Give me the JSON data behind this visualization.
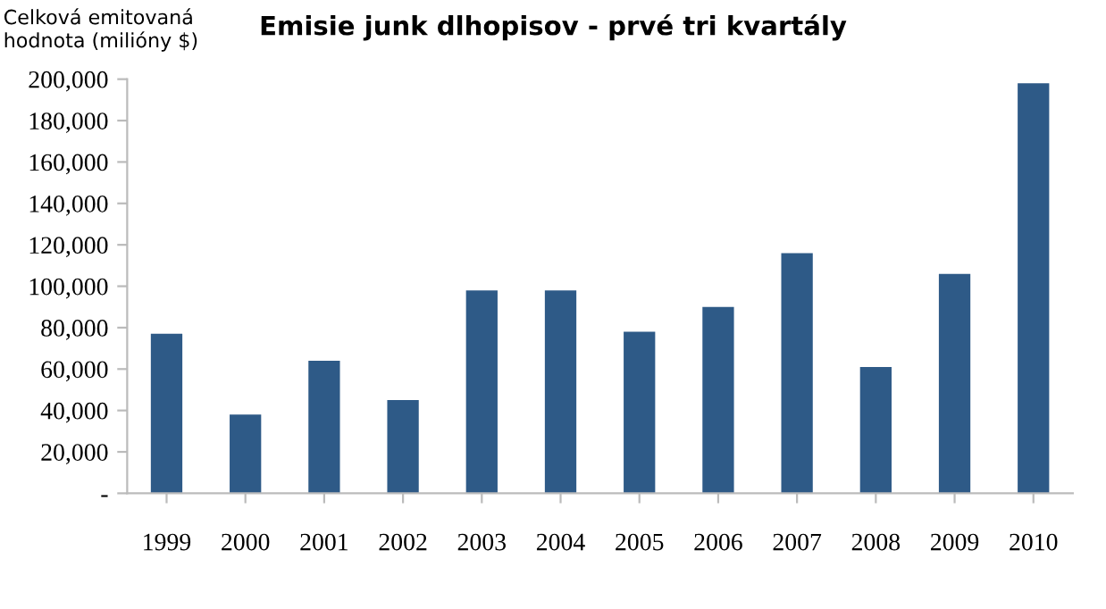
{
  "chart_data": {
    "type": "bar",
    "title": "Emisie junk dlhopisov - prvé tri kvartály",
    "ylabel": "Celková emitovaná\nhodnota (milióny $)",
    "categories": [
      "1999",
      "2000",
      "2001",
      "2002",
      "2003",
      "2004",
      "2005",
      "2006",
      "2007",
      "2008",
      "2009",
      "2010"
    ],
    "values": [
      77000,
      38000,
      64000,
      45000,
      98000,
      98000,
      78000,
      90000,
      116000,
      61000,
      106000,
      198000
    ],
    "color": "#2e5a87",
    "ylim": [
      0,
      200000
    ],
    "yticks": [
      {
        "value": 0,
        "label": "-"
      },
      {
        "value": 20000,
        "label": "20,000"
      },
      {
        "value": 40000,
        "label": "40,000"
      },
      {
        "value": 60000,
        "label": "60,000"
      },
      {
        "value": 80000,
        "label": "80,000"
      },
      {
        "value": 100000,
        "label": "100,000"
      },
      {
        "value": 120000,
        "label": "120,000"
      },
      {
        "value": 140000,
        "label": "140,000"
      },
      {
        "value": 160000,
        "label": "160,000"
      },
      {
        "value": 180000,
        "label": "180,000"
      },
      {
        "value": 200000,
        "label": "200,000"
      }
    ],
    "grid": false,
    "legend": false
  }
}
